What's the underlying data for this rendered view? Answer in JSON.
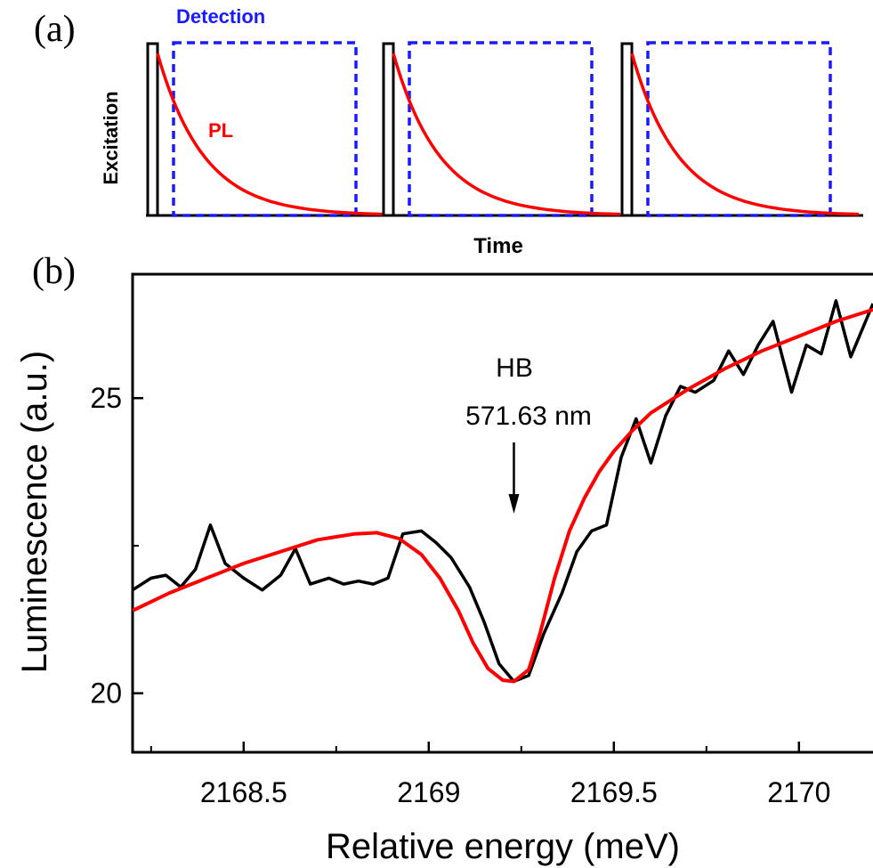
{
  "panel_a": {
    "label": "(a)",
    "detection_label": "Detection",
    "pl_label": "PL",
    "ylabel": "Excitation",
    "xlabel": "Time",
    "colors": {
      "excitation": "#000000",
      "detection": "#1a1aff",
      "pl": "#ff0000"
    }
  },
  "panel_b": {
    "label": "(b)",
    "annotation": {
      "line1": "HB",
      "line2": "571.63 nm",
      "x": 2169.23
    },
    "colors": {
      "data": "#000000",
      "fit": "#ff0000"
    }
  },
  "chart_data": [
    {
      "type": "line",
      "panel": "a",
      "xlabel": "Time",
      "ylabel": "Excitation",
      "series": [
        {
          "name": "Detection",
          "style": "dashed"
        },
        {
          "name": "PL",
          "shape": "exponential decay after each excitation pulse"
        }
      ],
      "pulse_count": 3
    },
    {
      "type": "line",
      "panel": "b",
      "xlabel": "Relative energy (meV)",
      "ylabel": "Luminescence (a.u.)",
      "xlim": [
        2168.2,
        2170.2
      ],
      "ylim": [
        19.0,
        27.1
      ],
      "xticks": [
        2168.5,
        2169,
        2169.5,
        2170
      ],
      "xtick_labels": [
        "2168.5",
        "2169",
        "2169.5",
        "2170"
      ],
      "yticks": [
        20,
        25
      ],
      "ytick_labels": [
        "20",
        "25"
      ],
      "series": [
        {
          "color": "#000000",
          "x": [
            2168.2,
            2168.25,
            2168.29,
            2168.33,
            2168.37,
            2168.41,
            2168.45,
            2168.5,
            2168.55,
            2168.6,
            2168.64,
            2168.68,
            2168.73,
            2168.77,
            2168.81,
            2168.85,
            2168.89,
            2168.93,
            2168.98,
            2169.02,
            2169.06,
            2169.11,
            2169.15,
            2169.19,
            2169.23,
            2169.27,
            2169.31,
            2169.36,
            2169.4,
            2169.44,
            2169.48,
            2169.52,
            2169.56,
            2169.6,
            2169.64,
            2169.68,
            2169.72,
            2169.77,
            2169.81,
            2169.85,
            2169.89,
            2169.93,
            2169.98,
            2170.02,
            2170.06,
            2170.1,
            2170.14,
            2170.2
          ],
          "y": [
            21.75,
            21.95,
            22.0,
            21.8,
            22.1,
            22.85,
            22.2,
            21.95,
            21.75,
            22.0,
            22.45,
            21.85,
            21.95,
            21.85,
            21.9,
            21.85,
            21.95,
            22.7,
            22.75,
            22.55,
            22.3,
            21.8,
            21.2,
            20.5,
            20.2,
            20.3,
            21.0,
            21.7,
            22.4,
            22.75,
            22.85,
            24.0,
            24.65,
            23.9,
            24.7,
            25.2,
            25.1,
            25.3,
            25.8,
            25.4,
            25.9,
            26.3,
            25.1,
            25.9,
            25.75,
            26.65,
            25.7,
            26.6
          ]
        },
        {
          "color": "#ff0000",
          "x": [
            2168.2,
            2168.3,
            2168.4,
            2168.5,
            2168.6,
            2168.7,
            2168.8,
            2168.86,
            2168.92,
            2168.98,
            2169.03,
            2169.08,
            2169.12,
            2169.16,
            2169.2,
            2169.23,
            2169.27,
            2169.3,
            2169.34,
            2169.38,
            2169.42,
            2169.46,
            2169.5,
            2169.55,
            2169.6,
            2169.7,
            2169.8,
            2169.9,
            2170.0,
            2170.1,
            2170.2
          ],
          "y": [
            21.4,
            21.7,
            21.95,
            22.2,
            22.4,
            22.6,
            22.7,
            22.72,
            22.62,
            22.35,
            21.95,
            21.4,
            20.85,
            20.42,
            20.22,
            20.2,
            20.4,
            21.0,
            21.95,
            22.75,
            23.3,
            23.75,
            24.1,
            24.45,
            24.75,
            25.15,
            25.5,
            25.8,
            26.05,
            26.3,
            26.5
          ]
        }
      ]
    }
  ]
}
